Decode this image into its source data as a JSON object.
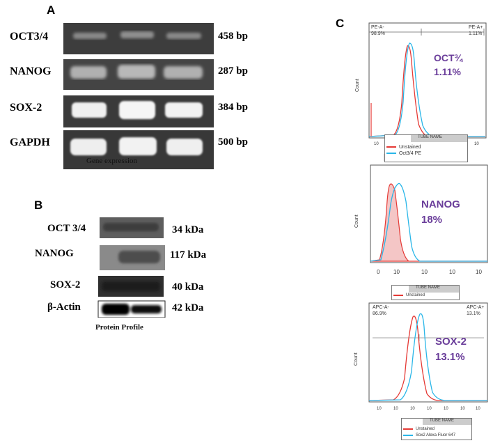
{
  "panel_a": {
    "letter": "A",
    "caption": "Gene expression",
    "rows": [
      {
        "gene": "OCT3/4",
        "size": "458 bp",
        "band": 0.25
      },
      {
        "gene": "NANOG",
        "size": "287 bp",
        "band": 0.55
      },
      {
        "gene": "SOX-2",
        "size": "384 bp",
        "band": 0.9
      },
      {
        "gene": "GAPDH",
        "size": "500 bp",
        "band": 0.95
      }
    ]
  },
  "panel_b": {
    "letter": "B",
    "caption": "Protein Profile",
    "rows": [
      {
        "protein": "OCT 3/4",
        "size": "34 kDa"
      },
      {
        "protein": "NANOG",
        "size": "117 kDa"
      },
      {
        "protein": "SOX-2",
        "size": "40 kDa"
      },
      {
        "protein": "β-Actin",
        "size": "42 kDa"
      }
    ]
  },
  "panel_c": {
    "letter": "C",
    "plots": [
      {
        "marker": "OCT¾",
        "percent": "1.11%",
        "gate_left_label": "PE-A-",
        "gate_left_value": "98.9%",
        "gate_right_label": "PE-A+",
        "gate_right_value": "1.11%",
        "ylabel": "Count",
        "legend_header": "TUBE NAME",
        "legend": [
          {
            "name": "Unstained",
            "color": "#e53935"
          },
          {
            "name": "Oct3/4 PE",
            "color": "#29b6e8"
          }
        ]
      },
      {
        "marker": "NANOG",
        "percent": "18%",
        "ylabel": "Count",
        "legend_header": "TUBE NAME",
        "legend": [
          {
            "name": "Unstained",
            "color": "#e53935"
          }
        ]
      },
      {
        "marker": "SOX-2",
        "percent": "13.1%",
        "gate_left_label": "APC-A-",
        "gate_left_value": "86.9%",
        "gate_right_label": "APC-A+",
        "gate_right_value": "13.1%",
        "ylabel": "Count",
        "legend_header": "TUBE NAME",
        "legend": [
          {
            "name": "Unstained",
            "color": "#e53935"
          },
          {
            "name": "Sox2 Alexa Fluor 647",
            "color": "#29b6e8"
          }
        ]
      }
    ]
  },
  "colors": {
    "unstained": "#e53935",
    "stained": "#29b6e8",
    "annotation": "#6a3d9a"
  }
}
